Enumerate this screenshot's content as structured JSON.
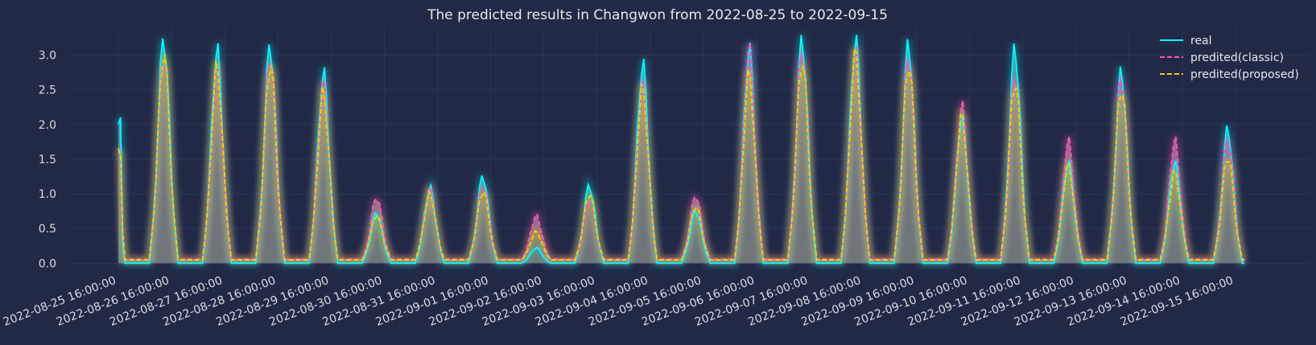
{
  "chart_data": {
    "type": "line",
    "title": "The predicted results in Changwon from 2022-08-25 to 2022-09-15",
    "xlabel": "",
    "ylabel": "",
    "ylim": [
      -0.1,
      3.4
    ],
    "yticks": [
      0.0,
      0.5,
      1.0,
      1.5,
      2.0,
      2.5,
      3.0
    ],
    "ytick_labels": [
      "0.0",
      "0.5",
      "1.0",
      "1.5",
      "2.0",
      "2.5",
      "3.0"
    ],
    "x_start": "2022-08-25 16:00:00",
    "xtick_labels": [
      "2022-08-25 16:00:00",
      "2022-08-26 16:00:00",
      "2022-08-27 16:00:00",
      "2022-08-28 16:00:00",
      "2022-08-29 16:00:00",
      "2022-08-30 16:00:00",
      "2022-08-31 16:00:00",
      "2022-09-01 16:00:00",
      "2022-09-02 16:00:00",
      "2022-09-03 16:00:00",
      "2022-09-04 16:00:00",
      "2022-09-05 16:00:00",
      "2022-09-06 16:00:00",
      "2022-09-07 16:00:00",
      "2022-09-08 16:00:00",
      "2022-09-09 16:00:00",
      "2022-09-10 16:00:00",
      "2022-09-11 16:00:00",
      "2022-09-12 16:00:00",
      "2022-09-13 16:00:00",
      "2022-09-14 16:00:00",
      "2022-09-15 16:00:00"
    ],
    "grid": true,
    "legend_position": "top-right",
    "daily_peaks": {
      "real": [
        3.25,
        3.05,
        3.15,
        2.72,
        0.72,
        1.08,
        1.25,
        0.22,
        1.12,
        2.85,
        0.75,
        3.08,
        3.22,
        3.2,
        3.15,
        2.1,
        3.08,
        1.45,
        2.75,
        1.45,
        1.92
      ],
      "classic": [
        2.95,
        2.7,
        2.95,
        2.5,
        0.9,
        1.0,
        1.05,
        0.62,
        0.85,
        2.5,
        0.92,
        3.0,
        3.05,
        2.95,
        2.95,
        2.2,
        2.65,
        1.7,
        2.65,
        1.7,
        1.75
      ],
      "proposed": [
        3.0,
        2.75,
        2.85,
        2.4,
        0.65,
        0.95,
        1.0,
        0.4,
        0.95,
        2.45,
        0.78,
        2.65,
        2.9,
        2.95,
        2.85,
        2.05,
        2.6,
        1.35,
        2.5,
        1.25,
        1.5
      ]
    },
    "series": [
      {
        "name": "real",
        "color": "#08F7FE",
        "style": "solid"
      },
      {
        "name": "predited(classic)",
        "color": "#FE53BB",
        "style": "dashed"
      },
      {
        "name": "predited(proposed)",
        "color": "#F5D300",
        "style": "dashed"
      }
    ],
    "colors": {
      "background": "#212946",
      "grid": "#2A3459",
      "fill": "#8a8f8c"
    }
  }
}
